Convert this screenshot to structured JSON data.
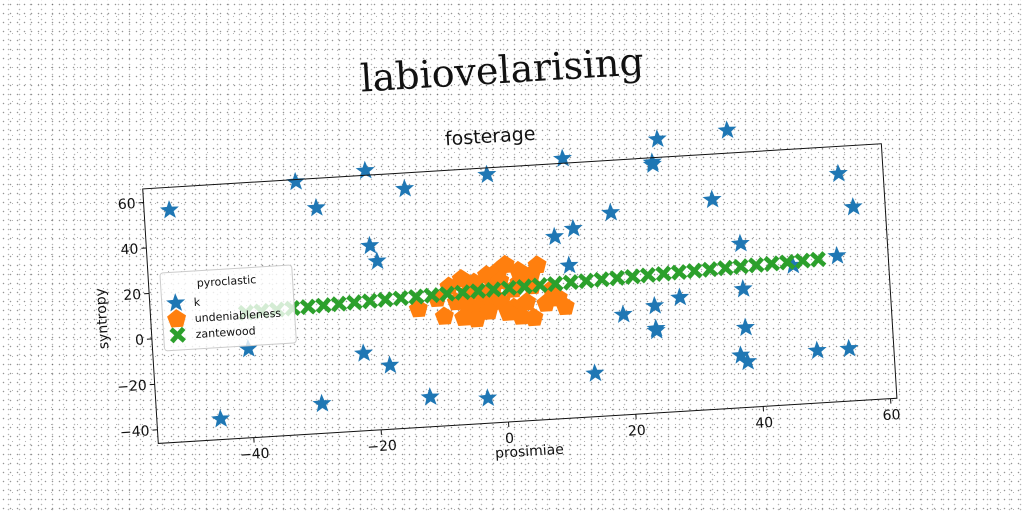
{
  "suptitle": "labiovelarising",
  "chart_data": {
    "type": "scatter",
    "title": "fosterage",
    "xlabel": "prosimiae",
    "ylabel": "syntropy",
    "xlim": [
      -55,
      61
    ],
    "ylim": [
      -46,
      66
    ],
    "xticks": [
      -40,
      -20,
      0,
      20,
      40,
      60
    ],
    "yticks": [
      -40,
      -20,
      0,
      20,
      40,
      60
    ],
    "grid": false,
    "legend": {
      "title": "pyroclastic",
      "placement": "left"
    },
    "series": [
      {
        "name": "k",
        "marker": "star",
        "color": "#1f77b4",
        "points": [
          [
            -51,
            56
          ],
          [
            -31,
            65
          ],
          [
            -28,
            53
          ],
          [
            -20,
            68
          ],
          [
            -14,
            59
          ],
          [
            -1,
            63
          ],
          [
            11,
            68
          ],
          [
            25,
            64
          ],
          [
            25,
            63
          ],
          [
            26,
            74
          ],
          [
            37,
            76
          ],
          [
            34,
            46
          ],
          [
            18,
            43
          ],
          [
            12,
            37
          ],
          [
            9,
            34
          ],
          [
            -20,
            35
          ],
          [
            -19,
            28
          ],
          [
            11,
            21
          ],
          [
            38,
            26
          ],
          [
            54,
            54
          ],
          [
            56,
            39
          ],
          [
            53,
            18
          ],
          [
            46,
            15
          ],
          [
            38,
            6
          ],
          [
            28,
            4
          ],
          [
            24,
            1
          ],
          [
            19,
            -2
          ],
          [
            24,
            -9
          ],
          [
            24,
            -10
          ],
          [
            38,
            -11
          ],
          [
            -22,
            -12
          ],
          [
            -18,
            -18
          ],
          [
            -40,
            -7
          ],
          [
            -12,
            -33
          ],
          [
            -3,
            -35
          ],
          [
            -29,
            -33
          ],
          [
            -45,
            -37
          ],
          [
            14,
            -27
          ],
          [
            37,
            -23
          ],
          [
            38,
            -26
          ],
          [
            49,
            -23
          ],
          [
            54,
            -23
          ]
        ]
      },
      {
        "name": "undeniableness",
        "marker": "pentagon",
        "color": "#ff7f0e",
        "points": [
          [
            -8,
            15
          ],
          [
            -6,
            18
          ],
          [
            -4,
            16
          ],
          [
            -2,
            19
          ],
          [
            0,
            21
          ],
          [
            1,
            23
          ],
          [
            3,
            20
          ],
          [
            5,
            18
          ],
          [
            6,
            22
          ],
          [
            -7,
            8
          ],
          [
            -5,
            6
          ],
          [
            -3,
            5
          ],
          [
            -1,
            9
          ],
          [
            0,
            7
          ],
          [
            2,
            4
          ],
          [
            4,
            6
          ],
          [
            7,
            5
          ],
          [
            9,
            7
          ],
          [
            -9,
            2
          ],
          [
            -6,
            1
          ],
          [
            -4,
            0
          ],
          [
            -2,
            3
          ],
          [
            1,
            2
          ],
          [
            3,
            0
          ],
          [
            5,
            -1
          ],
          [
            -13,
            6
          ],
          [
            -10,
            10
          ],
          [
            -5,
            12
          ],
          [
            -1,
            14
          ],
          [
            2,
            12
          ],
          [
            5,
            13
          ],
          [
            8,
            11
          ],
          [
            -3,
            11
          ],
          [
            0,
            16
          ],
          [
            3,
            15
          ],
          [
            10,
            3
          ]
        ]
      },
      {
        "name": "zantewood",
        "marker": "x",
        "color": "#2ca02c",
        "x_start": -40,
        "x_end": 50,
        "y_start": 9,
        "y_end": 17
      }
    ]
  }
}
